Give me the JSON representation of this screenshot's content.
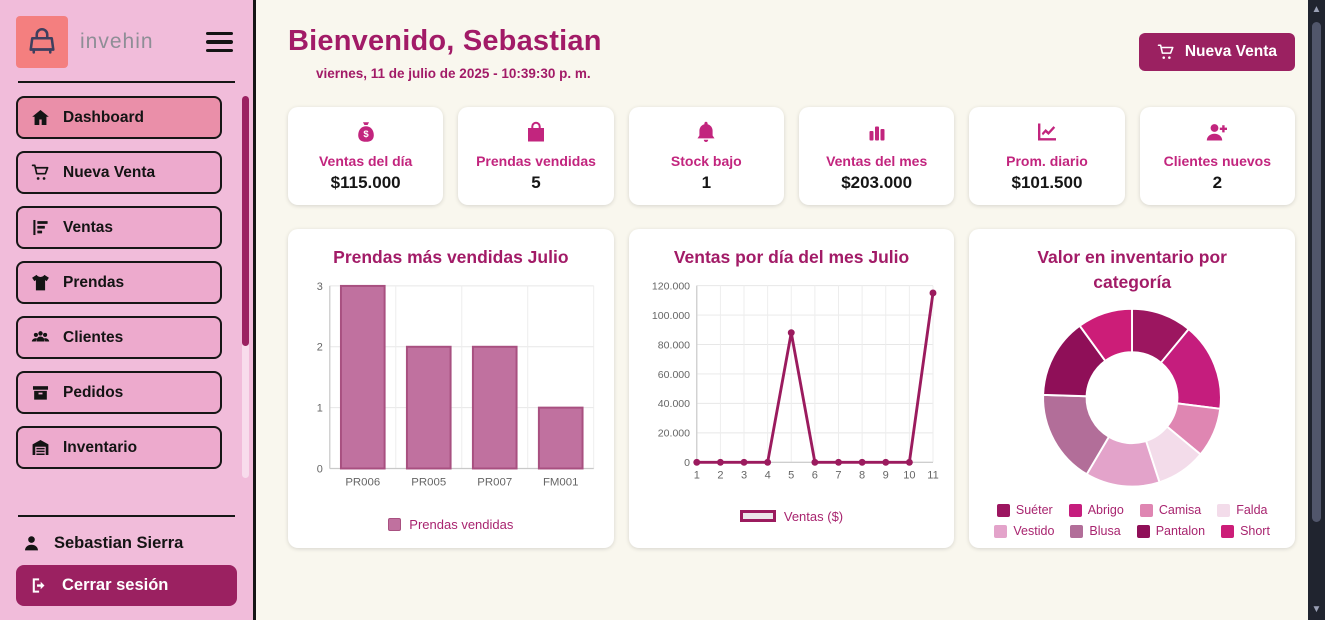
{
  "sidebar": {
    "logo_text": "invehin",
    "menu": [
      {
        "id": "dashboard",
        "label": "Dashboard",
        "icon": "home",
        "active": true
      },
      {
        "id": "nueva-venta",
        "label": "Nueva Venta",
        "icon": "cart",
        "active": false
      },
      {
        "id": "ventas",
        "label": "Ventas",
        "icon": "sales",
        "active": false
      },
      {
        "id": "prendas",
        "label": "Prendas",
        "icon": "shirt",
        "active": false
      },
      {
        "id": "clientes",
        "label": "Clientes",
        "icon": "users",
        "active": false
      },
      {
        "id": "pedidos",
        "label": "Pedidos",
        "icon": "box",
        "active": false
      },
      {
        "id": "inventario",
        "label": "Inventario",
        "icon": "warehouse",
        "active": false
      }
    ],
    "user_name": "Sebastian Sierra",
    "logout_label": "Cerrar sesión"
  },
  "header": {
    "title": "Bienvenido, Sebastian",
    "date": "viernes, 11 de julio de 2025 - 10:39:30 p. m.",
    "new_sale_button": "Nueva Venta"
  },
  "stats": [
    {
      "icon": "money-bag",
      "label": "Ventas del día",
      "value": "$115.000"
    },
    {
      "icon": "shopping-bag",
      "label": "Prendas vendidas",
      "value": "5"
    },
    {
      "icon": "bell",
      "label": "Stock bajo",
      "value": "1"
    },
    {
      "icon": "bar-chart",
      "label": "Ventas del mes",
      "value": "$203.000"
    },
    {
      "icon": "chart-line",
      "label": "Prom. diario",
      "value": "$101.500"
    },
    {
      "icon": "user-plus",
      "label": "Clientes nuevos",
      "value": "2"
    }
  ],
  "chart_data": [
    {
      "type": "bar",
      "title": "Prendas más vendidas Julio",
      "categories": [
        "PR006",
        "PR005",
        "PR007",
        "FM001"
      ],
      "values": [
        3,
        2,
        2,
        1
      ],
      "ylim": [
        0,
        3
      ],
      "yticks": [
        0,
        1,
        2,
        3
      ],
      "legend": "Prendas vendidas",
      "legend_position": "bottom",
      "grid": true,
      "bar_color": "#c0719f",
      "bar_border": "#a85080"
    },
    {
      "type": "line",
      "title": "Ventas por día del mes Julio",
      "x": [
        1,
        2,
        3,
        4,
        5,
        6,
        7,
        8,
        9,
        10,
        11
      ],
      "values": [
        0,
        0,
        0,
        0,
        88000,
        0,
        0,
        0,
        0,
        0,
        115000
      ],
      "ylim": [
        0,
        120000
      ],
      "ytick_step": 20000,
      "ytick_labels": [
        "0",
        "20.000",
        "40.000",
        "60.000",
        "80.000",
        "100.000",
        "120.000"
      ],
      "legend": "Ventas ($)",
      "legend_position": "bottom",
      "grid": true,
      "line_color": "#9b1b5e",
      "legend_swatch_fill": "#ece5ea"
    },
    {
      "type": "donut",
      "title": "Valor en inventario por categoría",
      "labels": [
        "Suéter",
        "Abrigo",
        "Camisa",
        "Falda",
        "Vestido",
        "Blusa",
        "Pantalon",
        "Short"
      ],
      "values": [
        11,
        16,
        9,
        9,
        13.5,
        17,
        14.5,
        10
      ],
      "colors": [
        "#9c1660",
        "#c51d7d",
        "#df86b2",
        "#f3dcea",
        "#e3a3ca",
        "#b26e99",
        "#8f0f58",
        "#cc1d78"
      ],
      "legend_position": "bottom"
    }
  ],
  "colors": {
    "accent": "#c2257e",
    "dark_accent": "#9b2161",
    "heading": "#a21b67",
    "sidebar_bg": "#f1bcda",
    "menu_item_bg": "#edaacd",
    "menu_active_bg": "#ea8fa9",
    "logo_bg": "#f47f7f",
    "main_bg": "#f9f7ee"
  }
}
